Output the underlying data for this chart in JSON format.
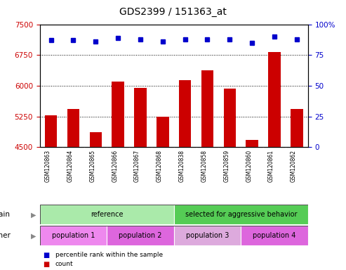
{
  "title": "GDS2399 / 151363_at",
  "samples": [
    "GSM120863",
    "GSM120864",
    "GSM120865",
    "GSM120866",
    "GSM120867",
    "GSM120868",
    "GSM120838",
    "GSM120858",
    "GSM120859",
    "GSM120860",
    "GSM120861",
    "GSM120862"
  ],
  "counts": [
    5280,
    5430,
    4870,
    6100,
    5940,
    5250,
    6130,
    6370,
    5930,
    4680,
    6820,
    5430
  ],
  "percentiles": [
    87,
    87,
    86,
    89,
    88,
    86,
    88,
    88,
    88,
    85,
    90,
    88
  ],
  "ylim_left": [
    4500,
    7500
  ],
  "ylim_right": [
    0,
    100
  ],
  "yticks_left": [
    4500,
    5250,
    6000,
    6750,
    7500
  ],
  "yticks_right": [
    0,
    25,
    50,
    75,
    100
  ],
  "bar_color": "#cc0000",
  "dot_color": "#0000cc",
  "grid_color": "#000000",
  "strain_groups": [
    {
      "label": "reference",
      "start": 0,
      "end": 6,
      "color": "#aaeaaa"
    },
    {
      "label": "selected for aggressive behavior",
      "start": 6,
      "end": 12,
      "color": "#55cc55"
    }
  ],
  "other_groups": [
    {
      "label": "population 1",
      "start": 0,
      "end": 3,
      "color": "#ee88ee"
    },
    {
      "label": "population 2",
      "start": 3,
      "end": 6,
      "color": "#dd66dd"
    },
    {
      "label": "population 3",
      "start": 6,
      "end": 9,
      "color": "#ddaadd"
    },
    {
      "label": "population 4",
      "start": 9,
      "end": 12,
      "color": "#dd66dd"
    }
  ],
  "legend_count_color": "#cc0000",
  "legend_dot_color": "#0000cc",
  "axis_color_left": "#cc0000",
  "axis_color_right": "#0000cc",
  "bg_color": "#ffffff",
  "plot_bg_color": "#ffffff",
  "tick_area_color": "#cccccc",
  "tick_sep_color": "#aaaaaa"
}
